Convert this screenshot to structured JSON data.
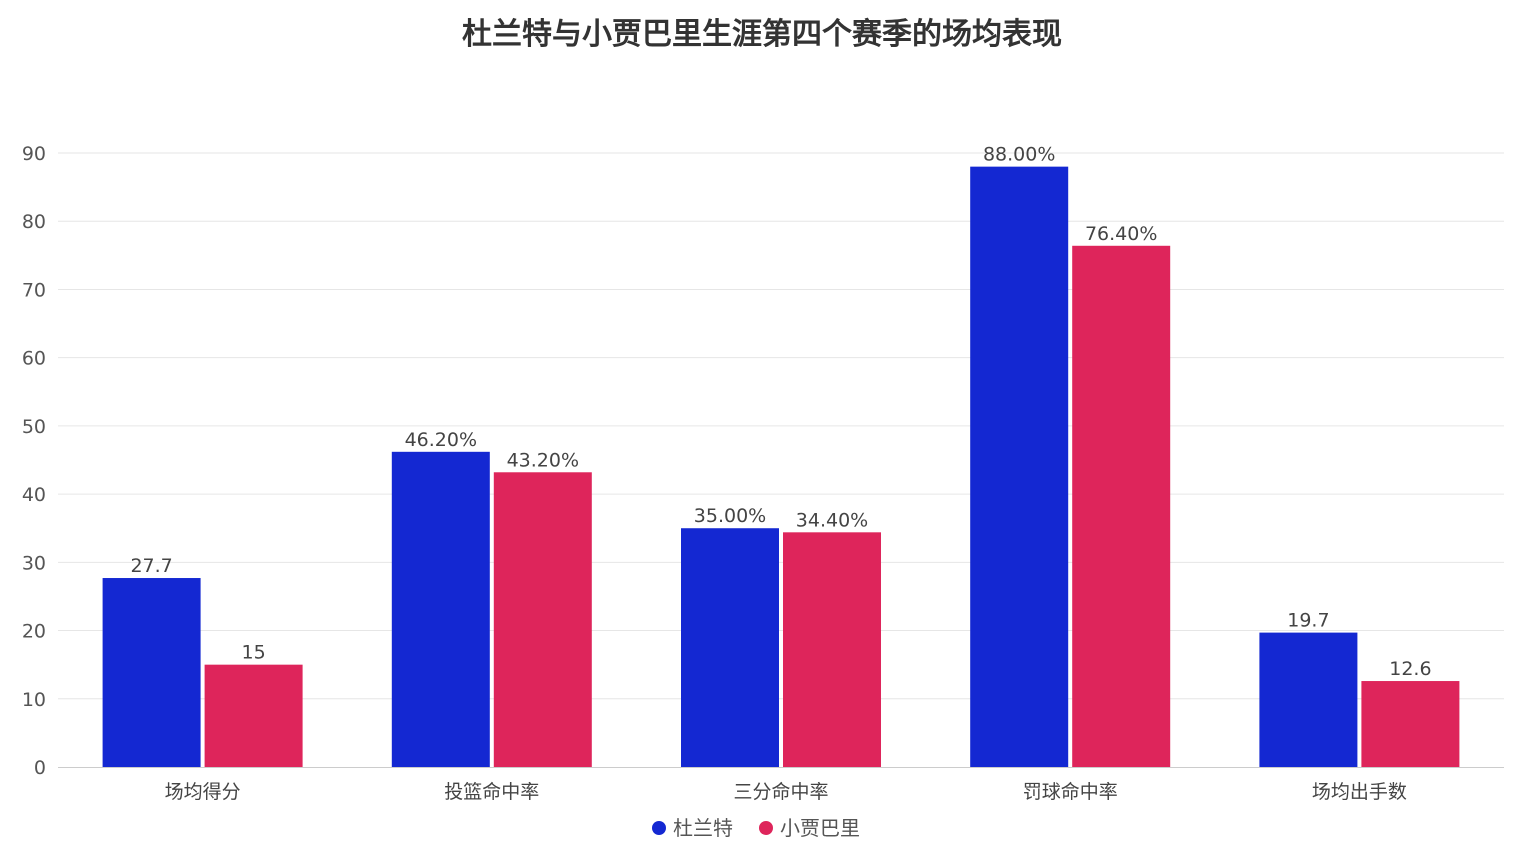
{
  "chart_data": {
    "type": "bar",
    "title": "杜兰特与小贾巴里生涯第四个赛季的场均表现",
    "categories": [
      "场均得分",
      "投篮命中率",
      "三分命中率",
      "罚球命中率",
      "场均出手数"
    ],
    "series": [
      {
        "name": "杜兰特",
        "color": "#1428d2",
        "values": [
          27.7,
          46.2,
          35.0,
          88.0,
          19.7
        ],
        "labels": [
          "27.7",
          "46.20%",
          "35.00%",
          "88.00%",
          "19.7"
        ]
      },
      {
        "name": "小贾巴里",
        "color": "#de255b",
        "values": [
          15,
          43.2,
          34.4,
          76.4,
          12.6
        ],
        "labels": [
          "15",
          "43.20%",
          "34.40%",
          "76.40%",
          "12.6"
        ]
      }
    ],
    "xlabel": "",
    "ylabel": "",
    "ylim": [
      0,
      90
    ],
    "yticks": [
      0,
      10,
      20,
      30,
      40,
      50,
      60,
      70,
      80,
      90
    ],
    "grid": true,
    "legend": "bottom-center"
  }
}
